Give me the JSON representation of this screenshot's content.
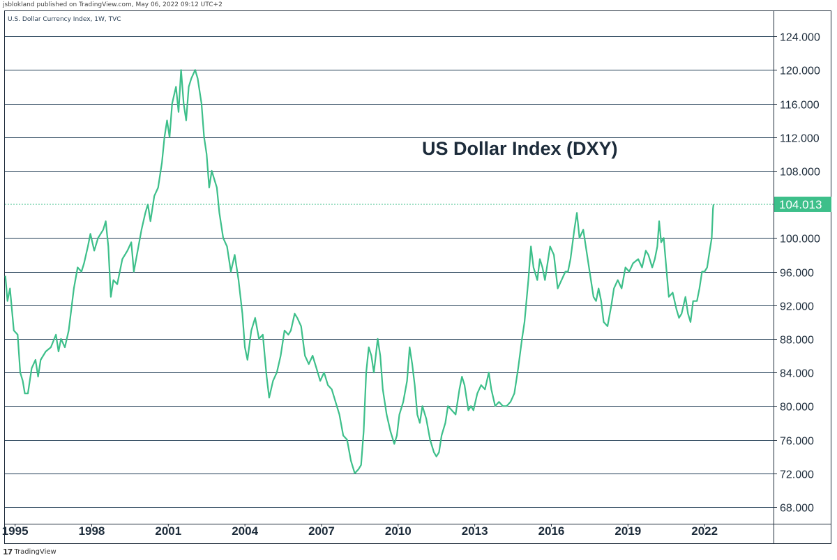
{
  "header": {
    "published": "jsblokland published on TradingView.com, May 06, 2022 09:12 UTC+2",
    "symbol": "U.S. Dollar Currency Index, 1W, TVC"
  },
  "footer": {
    "brand": "TradingView"
  },
  "colors": {
    "line": "#3dbf8a",
    "grid": "#1e3a52",
    "price_tag_bg": "#3dbf8a",
    "price_tag_text": "#ffffff"
  },
  "chart_data": {
    "type": "line",
    "title": "US Dollar Index (DXY)",
    "symbol": "DXY",
    "timeframe": "1W",
    "x_range": [
      1994.6,
      2024.7
    ],
    "ylim": [
      66.0,
      127.0
    ],
    "y_ticks": [
      68,
      72,
      76,
      80,
      84,
      88,
      92,
      96,
      100,
      104,
      108,
      112,
      116,
      120,
      124
    ],
    "y_tick_labels": [
      "68.000",
      "72.000",
      "76.000",
      "80.000",
      "84.000",
      "88.000",
      "92.000",
      "96.000",
      "100.000",
      "104.000",
      "108.000",
      "112.000",
      "116.000",
      "120.000",
      "124.000"
    ],
    "x_ticks": [
      1995,
      1998,
      2001,
      2004,
      2007,
      2010,
      2013,
      2016,
      2019,
      2022
    ],
    "x_tick_labels": [
      "1995",
      "1998",
      "2001",
      "2004",
      "2007",
      "2010",
      "2013",
      "2016",
      "2019",
      "2022"
    ],
    "last_price": 104.013,
    "last_price_label": "104.013",
    "series": [
      {
        "name": "U.S. Dollar Currency Index",
        "points": [
          [
            1994.62,
            95.5
          ],
          [
            1994.7,
            92.5
          ],
          [
            1994.8,
            94.0
          ],
          [
            1994.95,
            89.0
          ],
          [
            1995.1,
            88.5
          ],
          [
            1995.2,
            84.0
          ],
          [
            1995.3,
            83.0
          ],
          [
            1995.38,
            81.5
          ],
          [
            1995.5,
            81.5
          ],
          [
            1995.65,
            84.5
          ],
          [
            1995.8,
            85.5
          ],
          [
            1995.9,
            83.5
          ],
          [
            1996.0,
            85.5
          ],
          [
            1996.2,
            86.5
          ],
          [
            1996.4,
            87.0
          ],
          [
            1996.6,
            88.5
          ],
          [
            1996.7,
            86.5
          ],
          [
            1996.8,
            88.0
          ],
          [
            1996.95,
            87.0
          ],
          [
            1997.1,
            89.0
          ],
          [
            1997.3,
            94.0
          ],
          [
            1997.45,
            96.5
          ],
          [
            1997.6,
            96.0
          ],
          [
            1997.7,
            97.0
          ],
          [
            1997.85,
            99.0
          ],
          [
            1997.95,
            100.5
          ],
          [
            1998.1,
            98.5
          ],
          [
            1998.25,
            100.0
          ],
          [
            1998.45,
            101.0
          ],
          [
            1998.55,
            102.0
          ],
          [
            1998.65,
            99.0
          ],
          [
            1998.75,
            93.0
          ],
          [
            1998.85,
            95.0
          ],
          [
            1999.0,
            94.5
          ],
          [
            1999.2,
            97.5
          ],
          [
            1999.4,
            98.5
          ],
          [
            1999.55,
            99.5
          ],
          [
            1999.65,
            96.0
          ],
          [
            1999.8,
            98.5
          ],
          [
            1999.95,
            101.0
          ],
          [
            2000.1,
            103.0
          ],
          [
            2000.2,
            104.0
          ],
          [
            2000.3,
            102.0
          ],
          [
            2000.45,
            105.0
          ],
          [
            2000.6,
            106.0
          ],
          [
            2000.75,
            109.0
          ],
          [
            2000.85,
            112.0
          ],
          [
            2000.95,
            114.0
          ],
          [
            2001.05,
            112.0
          ],
          [
            2001.15,
            116.0
          ],
          [
            2001.3,
            118.0
          ],
          [
            2001.4,
            115.0
          ],
          [
            2001.5,
            120.0
          ],
          [
            2001.6,
            116.0
          ],
          [
            2001.7,
            114.0
          ],
          [
            2001.8,
            118.0
          ],
          [
            2001.9,
            119.0
          ],
          [
            2002.05,
            120.0
          ],
          [
            2002.15,
            119.0
          ],
          [
            2002.3,
            116.0
          ],
          [
            2002.4,
            112.0
          ],
          [
            2002.5,
            110.0
          ],
          [
            2002.6,
            106.0
          ],
          [
            2002.7,
            108.0
          ],
          [
            2002.8,
            107.0
          ],
          [
            2002.9,
            106.0
          ],
          [
            2003.0,
            103.0
          ],
          [
            2003.15,
            100.0
          ],
          [
            2003.3,
            99.0
          ],
          [
            2003.45,
            96.0
          ],
          [
            2003.6,
            98.0
          ],
          [
            2003.75,
            95.0
          ],
          [
            2003.9,
            91.0
          ],
          [
            2004.0,
            87.0
          ],
          [
            2004.1,
            85.5
          ],
          [
            2004.25,
            89.0
          ],
          [
            2004.4,
            90.5
          ],
          [
            2004.55,
            88.0
          ],
          [
            2004.7,
            88.5
          ],
          [
            2004.85,
            83.5
          ],
          [
            2004.95,
            81.0
          ],
          [
            2005.1,
            83.0
          ],
          [
            2005.25,
            84.0
          ],
          [
            2005.4,
            86.0
          ],
          [
            2005.55,
            89.0
          ],
          [
            2005.7,
            88.5
          ],
          [
            2005.8,
            89.0
          ],
          [
            2005.95,
            91.0
          ],
          [
            2006.05,
            90.5
          ],
          [
            2006.2,
            89.5
          ],
          [
            2006.35,
            86.0
          ],
          [
            2006.5,
            85.0
          ],
          [
            2006.65,
            86.0
          ],
          [
            2006.8,
            84.5
          ],
          [
            2006.95,
            83.0
          ],
          [
            2007.1,
            84.0
          ],
          [
            2007.25,
            82.5
          ],
          [
            2007.4,
            82.0
          ],
          [
            2007.55,
            80.5
          ],
          [
            2007.7,
            79.0
          ],
          [
            2007.85,
            76.5
          ],
          [
            2008.0,
            76.0
          ],
          [
            2008.15,
            73.5
          ],
          [
            2008.3,
            72.0
          ],
          [
            2008.45,
            72.5
          ],
          [
            2008.55,
            73.0
          ],
          [
            2008.65,
            77.0
          ],
          [
            2008.75,
            84.0
          ],
          [
            2008.85,
            87.0
          ],
          [
            2008.95,
            86.0
          ],
          [
            2009.05,
            84.0
          ],
          [
            2009.2,
            88.0
          ],
          [
            2009.3,
            86.0
          ],
          [
            2009.4,
            82.0
          ],
          [
            2009.55,
            79.0
          ],
          [
            2009.7,
            77.0
          ],
          [
            2009.85,
            75.5
          ],
          [
            2009.95,
            76.5
          ],
          [
            2010.05,
            79.0
          ],
          [
            2010.2,
            80.5
          ],
          [
            2010.35,
            83.0
          ],
          [
            2010.45,
            87.0
          ],
          [
            2010.55,
            85.0
          ],
          [
            2010.65,
            82.5
          ],
          [
            2010.75,
            79.0
          ],
          [
            2010.85,
            78.0
          ],
          [
            2010.95,
            80.0
          ],
          [
            2011.1,
            78.5
          ],
          [
            2011.25,
            76.0
          ],
          [
            2011.4,
            74.5
          ],
          [
            2011.5,
            74.0
          ],
          [
            2011.6,
            74.5
          ],
          [
            2011.7,
            76.5
          ],
          [
            2011.85,
            78.0
          ],
          [
            2011.95,
            80.0
          ],
          [
            2012.1,
            79.5
          ],
          [
            2012.25,
            79.0
          ],
          [
            2012.4,
            82.0
          ],
          [
            2012.5,
            83.5
          ],
          [
            2012.6,
            82.5
          ],
          [
            2012.75,
            79.5
          ],
          [
            2012.85,
            80.0
          ],
          [
            2012.95,
            79.5
          ],
          [
            2013.1,
            81.5
          ],
          [
            2013.25,
            82.5
          ],
          [
            2013.4,
            82.0
          ],
          [
            2013.55,
            84.0
          ],
          [
            2013.65,
            82.0
          ],
          [
            2013.8,
            80.0
          ],
          [
            2013.95,
            80.5
          ],
          [
            2014.1,
            80.0
          ],
          [
            2014.25,
            80.0
          ],
          [
            2014.4,
            80.5
          ],
          [
            2014.55,
            81.5
          ],
          [
            2014.7,
            84.5
          ],
          [
            2014.85,
            88.0
          ],
          [
            2014.95,
            90.0
          ],
          [
            2015.1,
            95.0
          ],
          [
            2015.2,
            99.0
          ],
          [
            2015.3,
            96.5
          ],
          [
            2015.45,
            95.0
          ],
          [
            2015.55,
            97.5
          ],
          [
            2015.65,
            96.5
          ],
          [
            2015.75,
            95.0
          ],
          [
            2015.85,
            97.0
          ],
          [
            2015.95,
            99.0
          ],
          [
            2016.1,
            98.0
          ],
          [
            2016.25,
            94.0
          ],
          [
            2016.4,
            95.0
          ],
          [
            2016.55,
            96.0
          ],
          [
            2016.65,
            96.0
          ],
          [
            2016.75,
            97.5
          ],
          [
            2016.9,
            101.0
          ],
          [
            2017.0,
            103.0
          ],
          [
            2017.1,
            100.0
          ],
          [
            2017.25,
            101.0
          ],
          [
            2017.4,
            98.0
          ],
          [
            2017.55,
            95.0
          ],
          [
            2017.65,
            93.0
          ],
          [
            2017.75,
            92.5
          ],
          [
            2017.85,
            94.0
          ],
          [
            2017.95,
            92.5
          ],
          [
            2018.05,
            90.0
          ],
          [
            2018.2,
            89.5
          ],
          [
            2018.35,
            92.0
          ],
          [
            2018.45,
            94.0
          ],
          [
            2018.6,
            95.0
          ],
          [
            2018.75,
            94.0
          ],
          [
            2018.9,
            96.5
          ],
          [
            2019.05,
            96.0
          ],
          [
            2019.2,
            97.0
          ],
          [
            2019.4,
            97.5
          ],
          [
            2019.55,
            96.5
          ],
          [
            2019.7,
            98.5
          ],
          [
            2019.8,
            98.0
          ],
          [
            2019.95,
            96.5
          ],
          [
            2020.05,
            97.5
          ],
          [
            2020.15,
            99.0
          ],
          [
            2020.22,
            102.0
          ],
          [
            2020.3,
            99.5
          ],
          [
            2020.4,
            100.0
          ],
          [
            2020.5,
            96.5
          ],
          [
            2020.6,
            93.0
          ],
          [
            2020.75,
            93.5
          ],
          [
            2020.9,
            91.5
          ],
          [
            2021.0,
            90.5
          ],
          [
            2021.1,
            91.0
          ],
          [
            2021.25,
            93.0
          ],
          [
            2021.35,
            91.0
          ],
          [
            2021.45,
            90.0
          ],
          [
            2021.55,
            92.5
          ],
          [
            2021.7,
            92.5
          ],
          [
            2021.8,
            94.0
          ],
          [
            2021.9,
            96.0
          ],
          [
            2022.0,
            96.0
          ],
          [
            2022.1,
            96.5
          ],
          [
            2022.2,
            98.5
          ],
          [
            2022.28,
            100.0
          ],
          [
            2022.33,
            103.5
          ],
          [
            2022.35,
            104.013
          ]
        ]
      }
    ]
  }
}
